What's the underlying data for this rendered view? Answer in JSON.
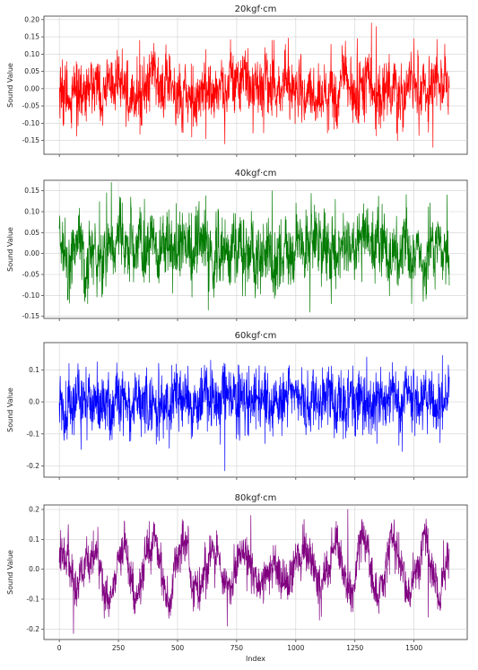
{
  "chart_data": [
    {
      "type": "line",
      "title": "20kgf·cm",
      "ylabel": "Sound Value",
      "xlabel": "",
      "color": "#ff0000",
      "xlim": [
        -65,
        1725
      ],
      "ylim": [
        -0.19,
        0.21
      ],
      "yticks": [
        0.2,
        0.15,
        0.1,
        0.05,
        0.0,
        -0.05,
        -0.1,
        -0.15
      ],
      "ytick_labels": [
        "0.20",
        "0.15",
        "0.10",
        "0.05",
        "0.00",
        "-0.05",
        "-0.10",
        "-0.15"
      ],
      "xticks": [
        0,
        250,
        500,
        750,
        1000,
        1250,
        1500
      ],
      "show_xtick_labels": false,
      "grid": true,
      "series": [
        {
          "n": 1650,
          "baseline": 0.0,
          "amplitude": 0.055,
          "peaks": [
            {
              "x": 900,
              "y": 0.14
            },
            {
              "x": 1260,
              "y": 0.145
            },
            {
              "x": 1320,
              "y": 0.19
            },
            {
              "x": 1340,
              "y": 0.18
            },
            {
              "x": 700,
              "y": -0.16
            },
            {
              "x": 1430,
              "y": -0.15
            },
            {
              "x": 1580,
              "y": -0.17
            },
            {
              "x": 560,
              "y": -0.14
            },
            {
              "x": 620,
              "y": -0.145
            },
            {
              "x": 340,
              "y": 0.14
            },
            {
              "x": 1140,
              "y": -0.12
            },
            {
              "x": 1500,
              "y": 0.145
            }
          ]
        }
      ]
    },
    {
      "type": "line",
      "title": "40kgf·cm",
      "ylabel": "Sound Value",
      "xlabel": "",
      "color": "#007a00",
      "xlim": [
        -65,
        1725
      ],
      "ylim": [
        -0.155,
        0.175
      ],
      "yticks": [
        0.15,
        0.1,
        0.05,
        0.0,
        -0.05,
        -0.1,
        -0.15
      ],
      "ytick_labels": [
        "0.15",
        "0.10",
        "0.05",
        "0.00",
        "-0.05",
        "-0.10",
        "-0.15"
      ],
      "xticks": [
        0,
        250,
        500,
        750,
        1000,
        1250,
        1500
      ],
      "show_xtick_labels": false,
      "grid": true,
      "series": [
        {
          "n": 1650,
          "baseline": 0.01,
          "amplitude": 0.05,
          "peaks": [
            {
              "x": 220,
              "y": 0.17
            },
            {
              "x": 200,
              "y": 0.145
            },
            {
              "x": 900,
              "y": 0.15
            },
            {
              "x": 360,
              "y": 0.13
            },
            {
              "x": 1640,
              "y": 0.14
            },
            {
              "x": 1060,
              "y": -0.14
            },
            {
              "x": 630,
              "y": -0.135
            },
            {
              "x": 1490,
              "y": -0.12
            },
            {
              "x": 120,
              "y": -0.12
            },
            {
              "x": 1150,
              "y": -0.12
            }
          ]
        }
      ]
    },
    {
      "type": "line",
      "title": "60kgf·cm",
      "ylabel": "Sound Value",
      "xlabel": "",
      "color": "#0000ff",
      "xlim": [
        -65,
        1725
      ],
      "ylim": [
        -0.235,
        0.185
      ],
      "yticks": [
        0.1,
        0.0,
        -0.1,
        -0.2
      ],
      "ytick_labels": [
        "0.1",
        "0.0",
        "-0.1",
        "-0.2"
      ],
      "xticks": [
        0,
        250,
        500,
        750,
        1000,
        1250,
        1500
      ],
      "show_xtick_labels": false,
      "grid": true,
      "series": [
        {
          "n": 1650,
          "baseline": 0.0,
          "amplitude": 0.06,
          "peaks": [
            {
              "x": 700,
              "y": -0.215
            },
            {
              "x": 1620,
              "y": 0.145
            },
            {
              "x": 1450,
              "y": -0.155
            },
            {
              "x": 870,
              "y": -0.13
            },
            {
              "x": 1300,
              "y": 0.14
            },
            {
              "x": 160,
              "y": 0.125
            },
            {
              "x": 640,
              "y": 0.13
            },
            {
              "x": 20,
              "y": -0.12
            }
          ]
        }
      ]
    },
    {
      "type": "line",
      "title": "80kgf·cm",
      "ylabel": "Sound Value",
      "xlabel": "Index",
      "color": "#800080",
      "xlim": [
        -65,
        1725
      ],
      "ylim": [
        -0.235,
        0.215
      ],
      "yticks": [
        0.2,
        0.1,
        0.0,
        -0.1,
        -0.2
      ],
      "ytick_labels": [
        "0.2",
        "0.1",
        "0.0",
        "-0.1",
        "-0.2"
      ],
      "xticks": [
        0,
        250,
        500,
        750,
        1000,
        1250,
        1500
      ],
      "xtick_labels": [
        "0",
        "250",
        "500",
        "750",
        "1000",
        "1250",
        "1500"
      ],
      "show_xtick_labels": true,
      "grid": true,
      "series": [
        {
          "n": 1650,
          "baseline": 0.0,
          "amplitude": 0.045,
          "oscillation": 0.08,
          "peaks": [
            {
              "x": 1220,
              "y": 0.2
            },
            {
              "x": 810,
              "y": 0.18
            },
            {
              "x": 60,
              "y": -0.215
            },
            {
              "x": 710,
              "y": -0.19
            },
            {
              "x": 1100,
              "y": -0.17
            },
            {
              "x": 380,
              "y": 0.16
            },
            {
              "x": 1030,
              "y": 0.15
            },
            {
              "x": 1560,
              "y": -0.16
            }
          ]
        }
      ]
    }
  ]
}
